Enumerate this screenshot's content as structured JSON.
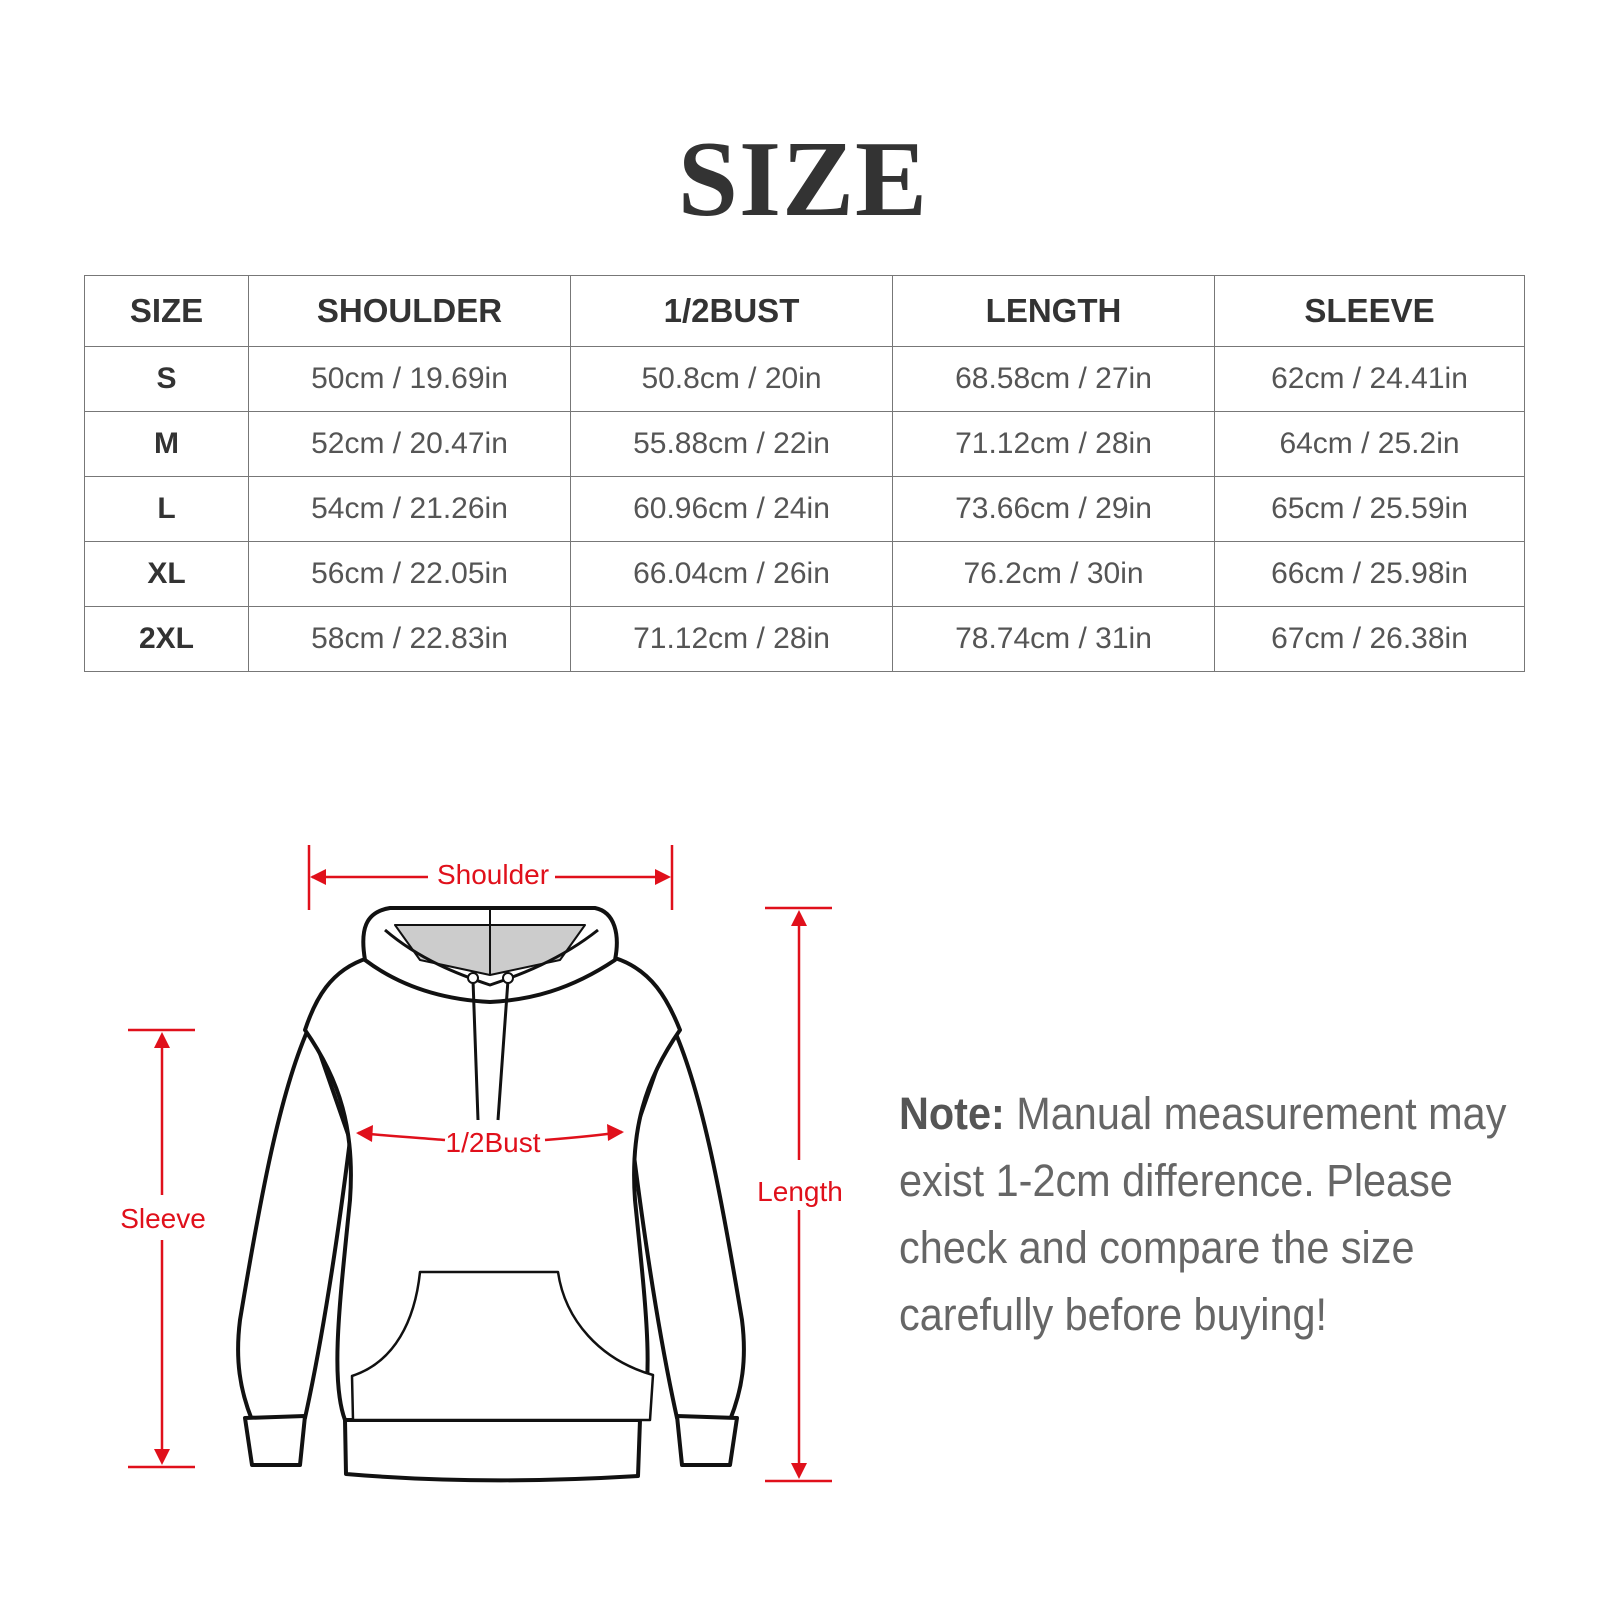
{
  "title": "SIZE",
  "table": {
    "headers": [
      "SIZE",
      "SHOULDER",
      "1/2BUST",
      "LENGTH",
      "SLEEVE"
    ],
    "rows": [
      [
        "S",
        "50cm / 19.69in",
        "50.8cm / 20in",
        "68.58cm / 27in",
        "62cm / 24.41in"
      ],
      [
        "M",
        "52cm / 20.47in",
        "55.88cm / 22in",
        "71.12cm / 28in",
        "64cm / 25.2in"
      ],
      [
        "L",
        "54cm / 21.26in",
        "60.96cm / 24in",
        "73.66cm / 29in",
        "65cm / 25.59in"
      ],
      [
        "XL",
        "56cm / 22.05in",
        "66.04cm / 26in",
        "76.2cm / 30in",
        "66cm / 25.98in"
      ],
      [
        "2XL",
        "58cm / 22.83in",
        "71.12cm / 28in",
        "78.74cm / 31in",
        "67cm / 26.38in"
      ]
    ]
  },
  "diagram": {
    "shoulder": "Shoulder",
    "bust": "1/2Bust",
    "sleeve": "Sleeve",
    "length": "Length",
    "accent_color": "#e0101b"
  },
  "note": {
    "label": "Note:",
    "text": " Manual measurement may exist 1-2cm difference. Please check and compare the size carefully before buying!"
  }
}
